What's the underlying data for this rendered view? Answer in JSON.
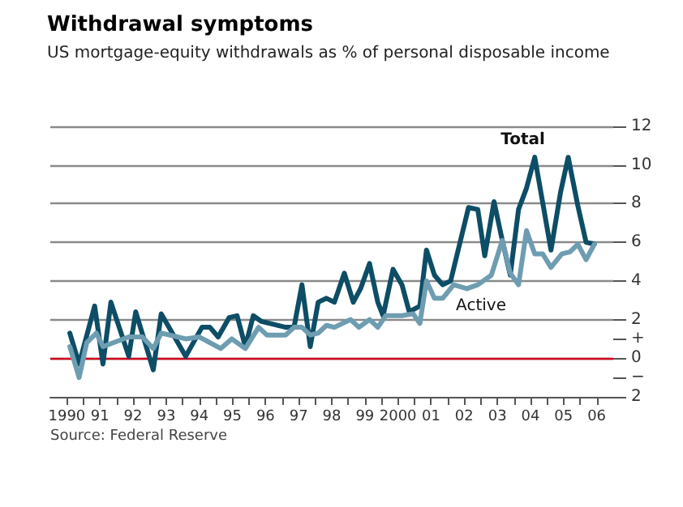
{
  "chart_data": {
    "type": "line",
    "title": "Withdrawal symptoms",
    "subtitle": "US mortgage-equity withdrawals as % of personal disposable income",
    "annotations": [
      "Source: Federal Reserve"
    ],
    "xlim": [
      1989.5,
      2006.5
    ],
    "xticks": [
      {
        "value": 1990,
        "label": "1990"
      },
      {
        "value": 1990.5,
        "label": null
      },
      {
        "value": 1991,
        "label": "91"
      },
      {
        "value": 1991.5,
        "label": null
      },
      {
        "value": 1992,
        "label": "92"
      },
      {
        "value": 1992.5,
        "label": null
      },
      {
        "value": 1993,
        "label": "93"
      },
      {
        "value": 1993.5,
        "label": null
      },
      {
        "value": 1994,
        "label": "94"
      },
      {
        "value": 1994.5,
        "label": null
      },
      {
        "value": 1995,
        "label": "95"
      },
      {
        "value": 1995.5,
        "label": null
      },
      {
        "value": 1996,
        "label": "96"
      },
      {
        "value": 1996.5,
        "label": null
      },
      {
        "value": 1997,
        "label": "97"
      },
      {
        "value": 1997.5,
        "label": null
      },
      {
        "value": 1998,
        "label": "98"
      },
      {
        "value": 1998.5,
        "label": null
      },
      {
        "value": 1999,
        "label": "99"
      },
      {
        "value": 1999.5,
        "label": null
      },
      {
        "value": 2000,
        "label": "2000"
      },
      {
        "value": 2000.5,
        "label": null
      },
      {
        "value": 2001,
        "label": "01"
      },
      {
        "value": 2001.5,
        "label": null
      },
      {
        "value": 2002,
        "label": "02"
      },
      {
        "value": 2002.5,
        "label": null
      },
      {
        "value": 2003,
        "label": "03"
      },
      {
        "value": 2003.5,
        "label": null
      },
      {
        "value": 2004,
        "label": "04"
      },
      {
        "value": 2004.5,
        "label": null
      },
      {
        "value": 2005,
        "label": "05"
      },
      {
        "value": 2005.5,
        "label": null
      },
      {
        "value": 2006,
        "label": "06"
      }
    ],
    "ylim": [
      -2,
      12
    ],
    "yticks": [
      {
        "value": -2,
        "label": "2"
      },
      {
        "value": -1,
        "label": "−"
      },
      0,
      {
        "value": 1,
        "label": "+"
      },
      2,
      4,
      6,
      8,
      10,
      12
    ],
    "grid": "y",
    "legend": false,
    "marker": "none",
    "line_style": "solid",
    "ref_lines": [
      {
        "axis": "y",
        "value": 0,
        "label": null,
        "color": "#d0021b"
      }
    ],
    "series": [
      {
        "name": "Total",
        "color": "#0d4d66",
        "x": [
          1990.09,
          1990.37,
          1990.84,
          1991.09,
          1991.33,
          1991.87,
          1992.08,
          1992.61,
          1992.85,
          1993.59,
          1994.08,
          1994.32,
          1994.57,
          1994.9,
          1995.14,
          1995.39,
          1995.63,
          1995.88,
          1996.61,
          1996.86,
          1997.1,
          1997.35,
          1997.59,
          1997.84,
          1998.08,
          1998.38,
          1998.65,
          1998.87,
          1999.14,
          1999.39,
          1999.55,
          1999.85,
          2000.12,
          2000.34,
          2000.66,
          2000.86,
          2001.1,
          2001.35,
          2001.59,
          2002.13,
          2002.41,
          2002.62,
          2002.9,
          2003.15,
          2003.39,
          2003.64,
          2003.88,
          2004.13,
          2004.62,
          2004.91,
          2005.14,
          2005.43,
          2005.68,
          2005.93
        ],
        "values": [
          1.3,
          -0.3,
          2.7,
          -0.3,
          2.9,
          0.1,
          2.4,
          -0.6,
          2.3,
          0.1,
          1.6,
          1.6,
          1.1,
          2.1,
          2.2,
          0.6,
          2.2,
          1.9,
          1.6,
          1.6,
          3.8,
          0.6,
          2.9,
          3.1,
          2.9,
          4.4,
          2.9,
          3.6,
          4.9,
          2.9,
          2.2,
          4.6,
          3.8,
          2.4,
          2.7,
          5.6,
          4.3,
          3.8,
          4.0,
          7.8,
          7.7,
          5.3,
          8.1,
          6.1,
          4.3,
          7.7,
          8.8,
          10.4,
          5.6,
          8.6,
          10.4,
          7.9,
          6.0,
          5.9
        ]
      },
      {
        "name": "Active",
        "color": "#6e9db1",
        "x": [
          1990.09,
          1990.37,
          1990.6,
          1990.89,
          1991.09,
          1991.87,
          1992.28,
          1992.61,
          1992.85,
          1993.59,
          1994,
          1994.65,
          1994.98,
          1995.39,
          1995.79,
          1996.04,
          1996.61,
          1996.86,
          1997.1,
          1997.35,
          1997.59,
          1997.84,
          1998.08,
          1998.57,
          1998.82,
          1999.14,
          1999.39,
          1999.63,
          2000.12,
          2000.46,
          2000.66,
          2000.86,
          2001.1,
          2001.35,
          2001.68,
          2002.08,
          2002.41,
          2002.82,
          2003.15,
          2003.39,
          2003.64,
          2003.88,
          2004.13,
          2004.37,
          2004.62,
          2004.95,
          2005.19,
          2005.43,
          2005.68,
          2005.93
        ],
        "values": [
          0.6,
          -1.0,
          0.8,
          1.3,
          0.6,
          1.1,
          1.1,
          0.5,
          1.3,
          1.0,
          1.1,
          0.5,
          1.0,
          0.5,
          1.6,
          1.2,
          1.2,
          1.6,
          1.6,
          1.2,
          1.3,
          1.7,
          1.6,
          2.0,
          1.6,
          2.0,
          1.6,
          2.2,
          2.2,
          2.3,
          1.8,
          4.0,
          3.1,
          3.1,
          3.8,
          3.6,
          3.8,
          4.3,
          6.1,
          4.4,
          3.8,
          6.6,
          5.4,
          5.4,
          4.7,
          5.4,
          5.5,
          5.9,
          5.1,
          5.9
        ]
      }
    ]
  }
}
